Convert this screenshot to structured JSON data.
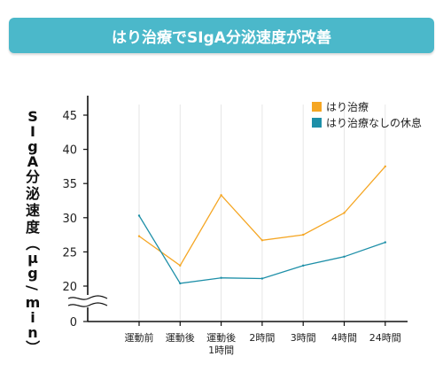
{
  "chart_data": {
    "type": "line",
    "title": "はり治療でSIgA分泌速度が改善",
    "ylabel": "SIgA分泌速度（μg/min）",
    "categories": [
      "運動前",
      "運動後",
      "運動後\n1時間",
      "2時間",
      "3時間",
      "4時間",
      "24時間"
    ],
    "ylim": [
      20,
      45
    ],
    "yticks": [
      0,
      20,
      25,
      30,
      35,
      40,
      45
    ],
    "axis_break": true,
    "grid": "vertical",
    "legend_position": "top-right",
    "series": [
      {
        "name": "はり治療",
        "color": "#f5a623",
        "values": [
          27.3,
          23.0,
          33.3,
          26.7,
          27.5,
          30.7,
          37.5
        ]
      },
      {
        "name": "はり治療なしの休息",
        "color": "#1d8fa8",
        "values": [
          30.3,
          20.4,
          21.2,
          21.1,
          23.0,
          24.3,
          26.4
        ]
      }
    ]
  }
}
